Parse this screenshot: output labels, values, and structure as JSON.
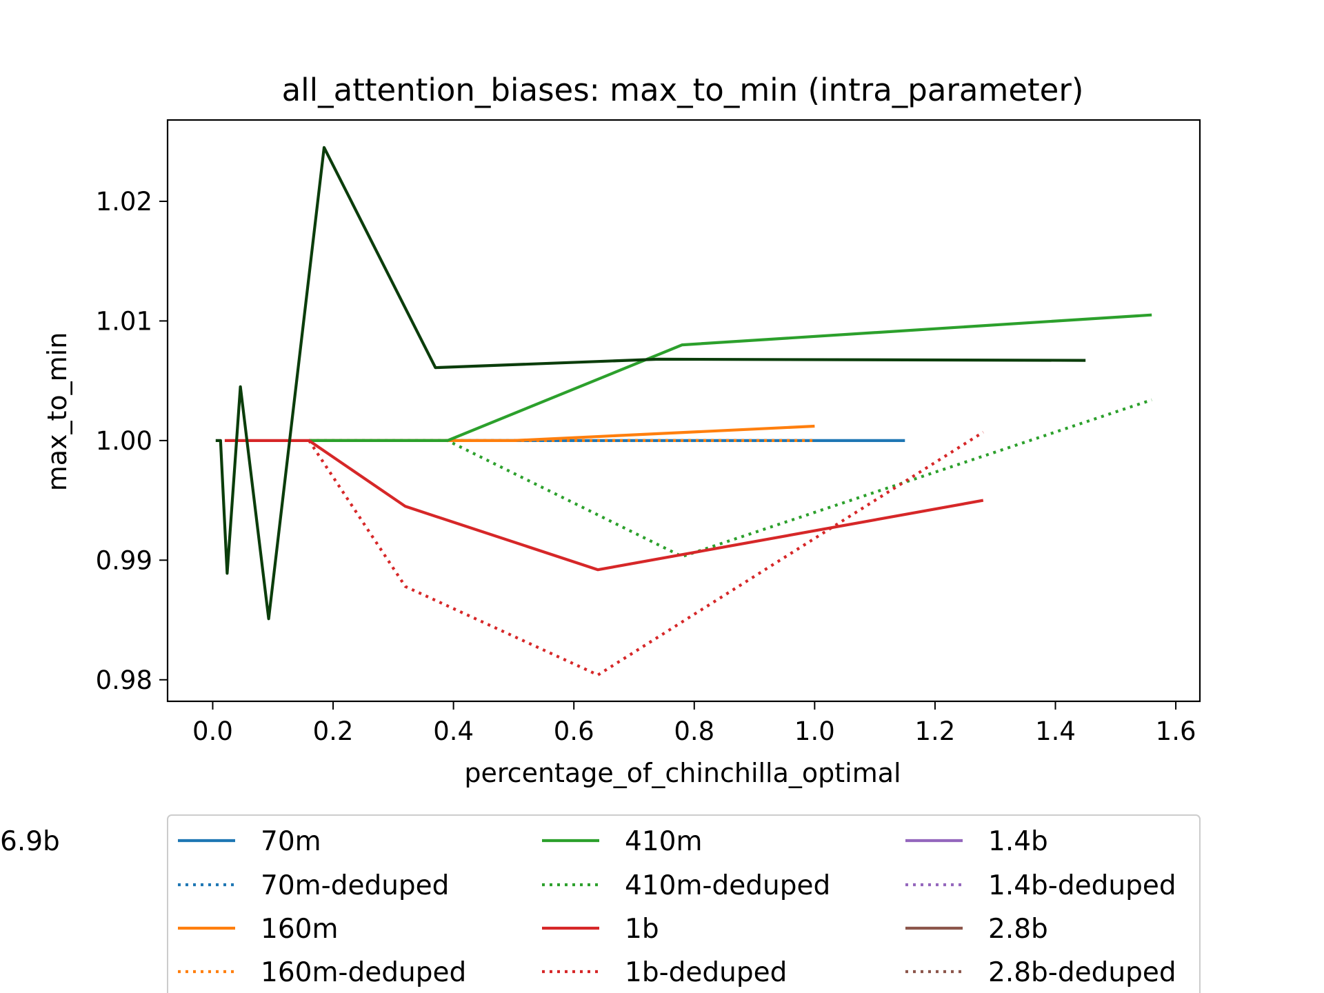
{
  "chart_data": {
    "type": "line",
    "title": "all_attention_biases: max_to_min (intra_parameter)",
    "xlabel": "percentage_of_chinchilla_optimal",
    "ylabel": "max_to_min",
    "xlim": [
      -0.075,
      1.64
    ],
    "ylim": [
      0.9782,
      1.0268
    ],
    "xticks": [
      0.0,
      0.2,
      0.4,
      0.6,
      0.8,
      1.0,
      1.2,
      1.4,
      1.6
    ],
    "xtick_labels": [
      "0.0",
      "0.2",
      "0.4",
      "0.6",
      "0.8",
      "1.0",
      "1.2",
      "1.4",
      "1.6"
    ],
    "yticks": [
      0.98,
      0.99,
      1.0,
      1.01,
      1.02
    ],
    "ytick_labels": [
      "0.98",
      "0.99",
      "1.00",
      "1.01",
      "1.02"
    ],
    "grid": false,
    "legend_placement": "below",
    "series": [
      {
        "name": "70m",
        "color": "#1f77b4",
        "style": "solid",
        "x": [
          0.16,
          0.39,
          0.5,
          0.78,
          1.0,
          1.15
        ],
        "y": [
          1.0,
          1.0,
          1.0,
          1.0,
          1.0,
          1.0
        ]
      },
      {
        "name": "70m-deduped",
        "color": "#1f77b4",
        "style": "dotted",
        "x": [
          0.16,
          0.39,
          0.5,
          0.78,
          1.0
        ],
        "y": [
          1.0,
          1.0,
          1.0,
          1.0,
          1.0
        ]
      },
      {
        "name": "160m",
        "color": "#ff7f0e",
        "style": "solid",
        "x": [
          0.16,
          0.39,
          0.5,
          1.0
        ],
        "y": [
          1.0,
          1.0,
          1.0,
          1.0012
        ]
      },
      {
        "name": "160m-deduped",
        "color": "#ff7f0e",
        "style": "dotted",
        "x": [
          0.16,
          0.39,
          0.5,
          1.0
        ],
        "y": [
          1.0,
          1.0,
          1.0,
          1.0
        ]
      },
      {
        "name": "410m",
        "color": "#2ca02c",
        "style": "solid",
        "x": [
          0.16,
          0.39,
          0.78,
          1.56
        ],
        "y": [
          1.0,
          1.0,
          1.008,
          1.0105
        ]
      },
      {
        "name": "410m-deduped",
        "color": "#2ca02c",
        "style": "dotted",
        "x": [
          0.16,
          0.39,
          0.78,
          1.56
        ],
        "y": [
          1.0,
          1.0,
          0.9903,
          1.0034
        ]
      },
      {
        "name": "1b",
        "color": "#d62728",
        "style": "solid",
        "x": [
          0.02,
          0.16,
          0.32,
          0.64,
          1.28
        ],
        "y": [
          1.0,
          1.0,
          0.9945,
          0.9892,
          0.995
        ]
      },
      {
        "name": "1b-deduped",
        "color": "#d62728",
        "style": "dotted",
        "x": [
          0.16,
          0.32,
          0.64,
          1.28
        ],
        "y": [
          1.0,
          0.9878,
          0.9804,
          1.0007
        ]
      },
      {
        "name": "1.4b",
        "color": "#9467bd",
        "style": "solid",
        "x": [],
        "y": []
      },
      {
        "name": "1.4b-deduped",
        "color": "#9467bd",
        "style": "dotted",
        "x": [],
        "y": []
      },
      {
        "name": "2.8b",
        "color": "#8c564b",
        "style": "solid",
        "x": [],
        "y": []
      },
      {
        "name": "2.8b-deduped",
        "color": "#8c564b",
        "style": "dotted",
        "x": [],
        "y": []
      },
      {
        "name": "6.9b",
        "color": "#0b3d0b",
        "style": "solid",
        "x": [
          0.005,
          0.013,
          0.024,
          0.046,
          0.093,
          0.185,
          0.37,
          0.74,
          1.45
        ],
        "y": [
          1.0,
          1.0,
          0.9889,
          1.0045,
          0.9851,
          1.0245,
          1.0061,
          1.0068,
          1.0067
        ]
      }
    ]
  }
}
